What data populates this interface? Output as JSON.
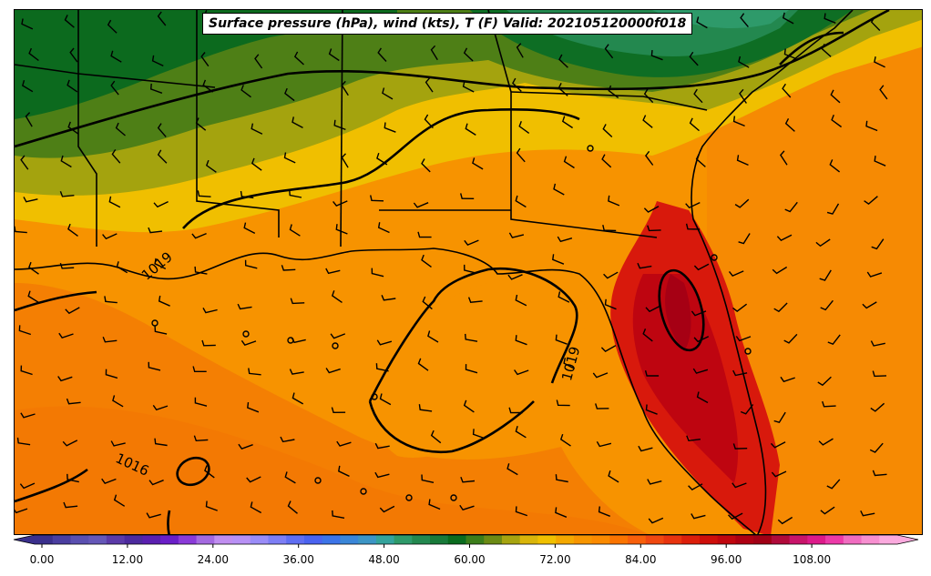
{
  "map": {
    "title": "Surface pressure (hPa), wind (kts), T (F) Valid: 202105120000f018",
    "isobar_labels": [
      "1019",
      "1019",
      "1016"
    ]
  },
  "colorbar": {
    "ticks": [
      "0.00",
      "12.00",
      "24.00",
      "36.00",
      "48.00",
      "60.00",
      "72.00",
      "84.00",
      "96.00",
      "108.00"
    ],
    "colors": [
      "#3a2f8c",
      "#4a3ea0",
      "#5a4fb0",
      "#6557b8",
      "#5b3aa8",
      "#4c2a9e",
      "#5a1fb0",
      "#6a1ec8",
      "#8a3ad8",
      "#a46ae0",
      "#c08ef0",
      "#b891f5",
      "#9a8cf8",
      "#7d7ef5",
      "#5f6ef2",
      "#4a63f0",
      "#3c74e8",
      "#3a86d8",
      "#3c95c5",
      "#34a39c",
      "#2e9a6a",
      "#23884f",
      "#187a3a",
      "#0a6b1e",
      "#3b7d1a",
      "#6b8a14",
      "#a6a410",
      "#d9b50a",
      "#f0c000",
      "#f4a800",
      "#f79500",
      "#fb8a00",
      "#fb7400",
      "#f85f0a",
      "#f04810",
      "#e8330e",
      "#dc1e0a",
      "#ce0e0a",
      "#c0060e",
      "#ae0012",
      "#a00015",
      "#b00a3a",
      "#c8146a",
      "#dd1a8a",
      "#ec3aa8",
      "#f06cc0",
      "#f78fd0",
      "#fbaade"
    ]
  }
}
